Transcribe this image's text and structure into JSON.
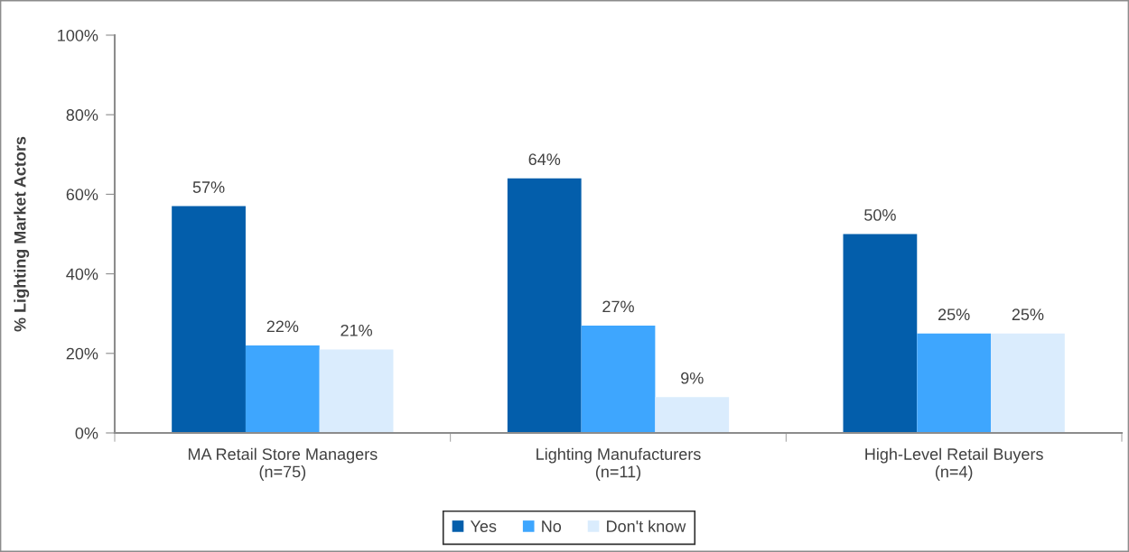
{
  "chart_data": {
    "type": "bar",
    "ylabel": "% Lighting Market Actors",
    "categories": [
      "MA Retail Store Managers\n(n=75)",
      "Lighting Manufacturers\n(n=11)",
      "High-Level Retail Buyers\n(n=4)"
    ],
    "series": [
      {
        "name": "Yes",
        "color": "#035eab",
        "values": [
          57,
          64,
          50
        ]
      },
      {
        "name": "No",
        "color": "#3ea6fe",
        "values": [
          22,
          27,
          25
        ]
      },
      {
        "name": "Don't know",
        "color": "#daecfd",
        "values": [
          21,
          9,
          25
        ]
      }
    ],
    "ylim": [
      0,
      100
    ],
    "yticks": [
      {
        "value": 0,
        "label": "0%"
      },
      {
        "value": 20,
        "label": "20%"
      },
      {
        "value": 40,
        "label": "40%"
      },
      {
        "value": 60,
        "label": "60%"
      },
      {
        "value": 80,
        "label": "80%"
      },
      {
        "value": 100,
        "label": "100%"
      }
    ],
    "value_labels": [
      [
        "57%",
        "64%",
        "50%"
      ],
      [
        "22%",
        "27%",
        "25%"
      ],
      [
        "21%",
        "9%",
        "25%"
      ]
    ],
    "grid": false,
    "legend": "bottom"
  }
}
